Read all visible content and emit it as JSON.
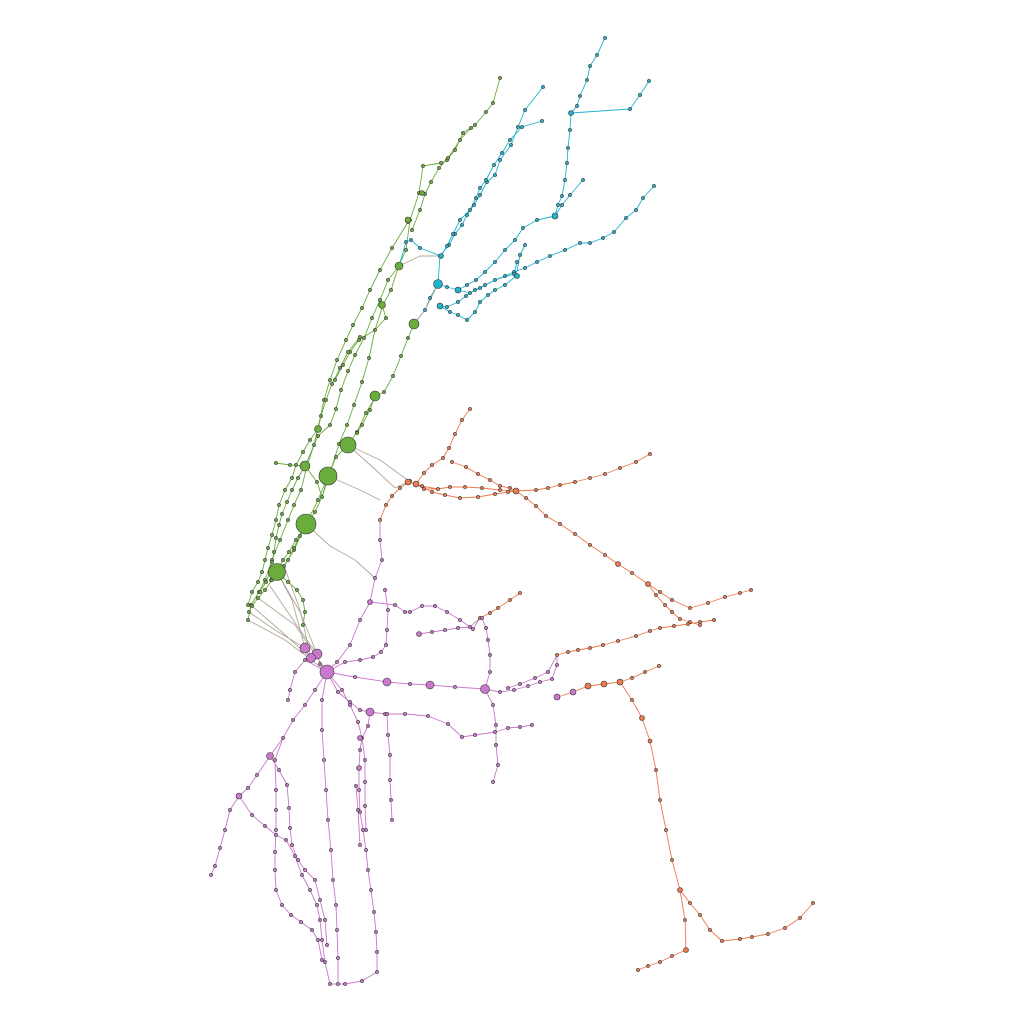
{
  "graph": {
    "type": "network",
    "communities": [
      {
        "id": "green",
        "color": "#6aad3c"
      },
      {
        "id": "cyan",
        "color": "#1fb3cc"
      },
      {
        "id": "orange",
        "color": "#ec7a4d"
      },
      {
        "id": "purple",
        "color": "#c978cc"
      }
    ],
    "bridge_color": "#b0a899",
    "node_border": "#333333"
  }
}
